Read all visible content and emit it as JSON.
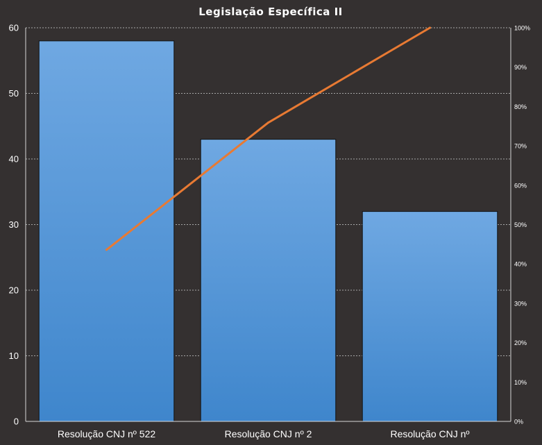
{
  "chart_data": {
    "type": "bar",
    "title": "Legislação Específica II",
    "categories": [
      "Resolução CNJ nº 522",
      "Resolução CNJ nº 2",
      "Resolução CNJ nº"
    ],
    "values": [
      58,
      43,
      32
    ],
    "ylim": [
      0,
      60
    ],
    "y_ticks": [
      "0",
      "10",
      "20",
      "30",
      "40",
      "50",
      "60"
    ],
    "y2lim": [
      0,
      100
    ],
    "y2_ticks": [
      "0%",
      "10%",
      "20%",
      "30%",
      "40%",
      "50%",
      "60%",
      "70%",
      "80%",
      "90%",
      "100%"
    ],
    "cumulative_percent": [
      43.6,
      75.9,
      100
    ],
    "grid": true,
    "colors": {
      "background": "#343030",
      "bar_top": "#6fa8e2",
      "bar_bottom": "#3f86cc",
      "line": "#e87a33"
    }
  }
}
